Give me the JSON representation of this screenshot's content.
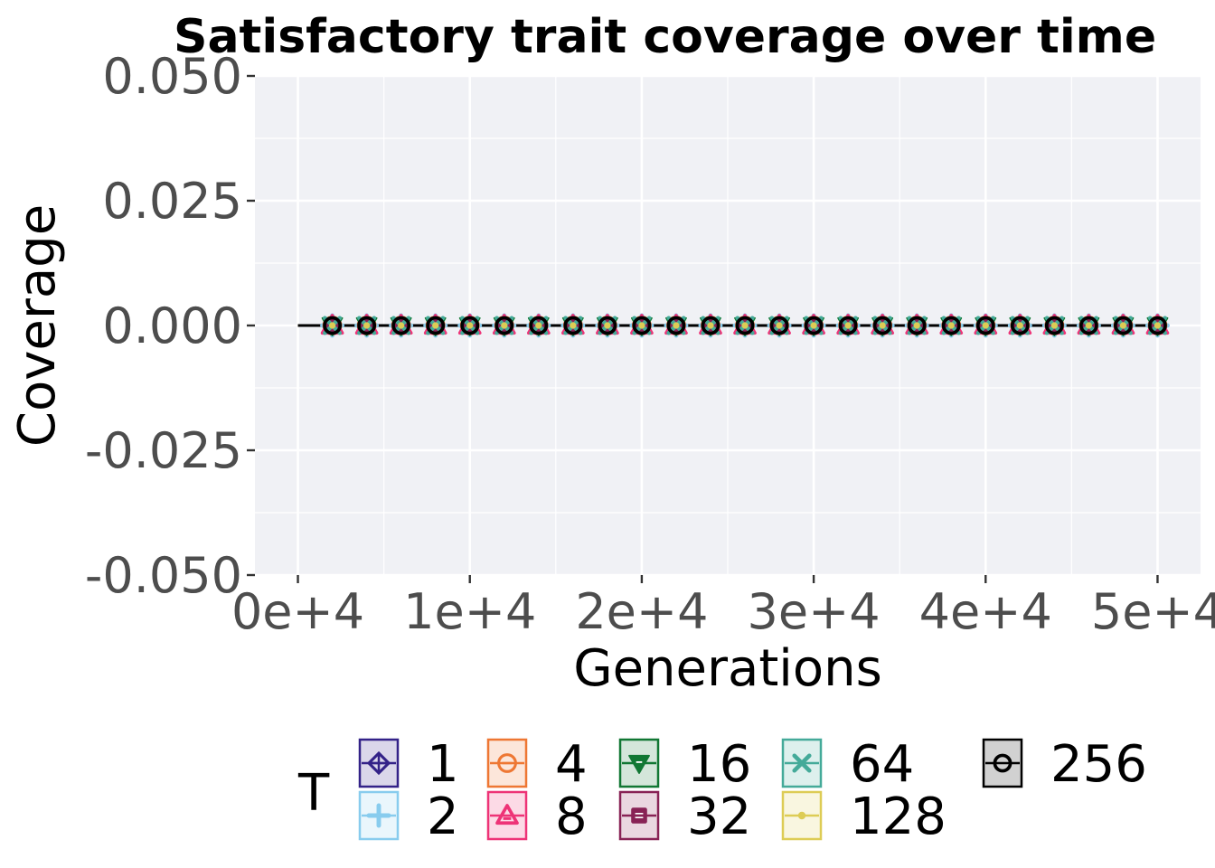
{
  "chart_data": {
    "type": "line",
    "title": "Satisfactory trait coverage over time",
    "xlabel": "Generations",
    "ylabel": "Coverage",
    "xlim": [
      -2500,
      52500
    ],
    "ylim": [
      -0.05,
      0.05
    ],
    "x_ticks": [
      0,
      10000,
      20000,
      30000,
      40000,
      50000
    ],
    "x_tick_labels": [
      "0e+4",
      "1e+4",
      "2e+4",
      "3e+4",
      "4e+4",
      "5e+4"
    ],
    "y_ticks": [
      0.05,
      0.025,
      0.0,
      -0.025,
      -0.05
    ],
    "y_tick_labels": [
      "0.050",
      "0.025",
      "0.000",
      "-0.025",
      "-0.050"
    ],
    "grid": true,
    "legend": {
      "title": "T",
      "placement": "bottom"
    },
    "x": [
      0,
      2000,
      4000,
      6000,
      8000,
      10000,
      12000,
      14000,
      16000,
      18000,
      20000,
      22000,
      24000,
      26000,
      28000,
      30000,
      32000,
      34000,
      36000,
      38000,
      40000,
      42000,
      44000,
      46000,
      48000,
      50000
    ],
    "series": [
      {
        "name": "1",
        "color": "#332288",
        "marker": "diamond-plus",
        "values": [
          0,
          0,
          0,
          0,
          0,
          0,
          0,
          0,
          0,
          0,
          0,
          0,
          0,
          0,
          0,
          0,
          0,
          0,
          0,
          0,
          0,
          0,
          0,
          0,
          0,
          0
        ]
      },
      {
        "name": "2",
        "color": "#88CCEE",
        "marker": "plus",
        "values": [
          0,
          0,
          0,
          0,
          0,
          0,
          0,
          0,
          0,
          0,
          0,
          0,
          0,
          0,
          0,
          0,
          0,
          0,
          0,
          0,
          0,
          0,
          0,
          0,
          0,
          0
        ]
      },
      {
        "name": "4",
        "color": "#EE7733",
        "marker": "circle-minus",
        "values": [
          0,
          0,
          0,
          0,
          0,
          0,
          0,
          0,
          0,
          0,
          0,
          0,
          0,
          0,
          0,
          0,
          0,
          0,
          0,
          0,
          0,
          0,
          0,
          0,
          0,
          0
        ]
      },
      {
        "name": "8",
        "color": "#EE3377",
        "marker": "triangle",
        "values": [
          0,
          0,
          0,
          0,
          0,
          0,
          0,
          0,
          0,
          0,
          0,
          0,
          0,
          0,
          0,
          0,
          0,
          0,
          0,
          0,
          0,
          0,
          0,
          0,
          0,
          0
        ]
      },
      {
        "name": "16",
        "color": "#117733",
        "marker": "triangle-down",
        "values": [
          0,
          0,
          0,
          0,
          0,
          0,
          0,
          0,
          0,
          0,
          0,
          0,
          0,
          0,
          0,
          0,
          0,
          0,
          0,
          0,
          0,
          0,
          0,
          0,
          0,
          0
        ]
      },
      {
        "name": "32",
        "color": "#882255",
        "marker": "square",
        "values": [
          0,
          0,
          0,
          0,
          0,
          0,
          0,
          0,
          0,
          0,
          0,
          0,
          0,
          0,
          0,
          0,
          0,
          0,
          0,
          0,
          0,
          0,
          0,
          0,
          0,
          0
        ]
      },
      {
        "name": "64",
        "color": "#44AA99",
        "marker": "cross",
        "values": [
          0,
          0,
          0,
          0,
          0,
          0,
          0,
          0,
          0,
          0,
          0,
          0,
          0,
          0,
          0,
          0,
          0,
          0,
          0,
          0,
          0,
          0,
          0,
          0,
          0,
          0
        ]
      },
      {
        "name": "128",
        "color": "#DDCC55",
        "marker": "dot",
        "values": [
          0,
          0,
          0,
          0,
          0,
          0,
          0,
          0,
          0,
          0,
          0,
          0,
          0,
          0,
          0,
          0,
          0,
          0,
          0,
          0,
          0,
          0,
          0,
          0,
          0,
          0
        ]
      },
      {
        "name": "256",
        "color": "#000000",
        "marker": "circle",
        "values": [
          0,
          0,
          0,
          0,
          0,
          0,
          0,
          0,
          0,
          0,
          0,
          0,
          0,
          0,
          0,
          0,
          0,
          0,
          0,
          0,
          0,
          0,
          0,
          0,
          0,
          0
        ]
      }
    ]
  }
}
